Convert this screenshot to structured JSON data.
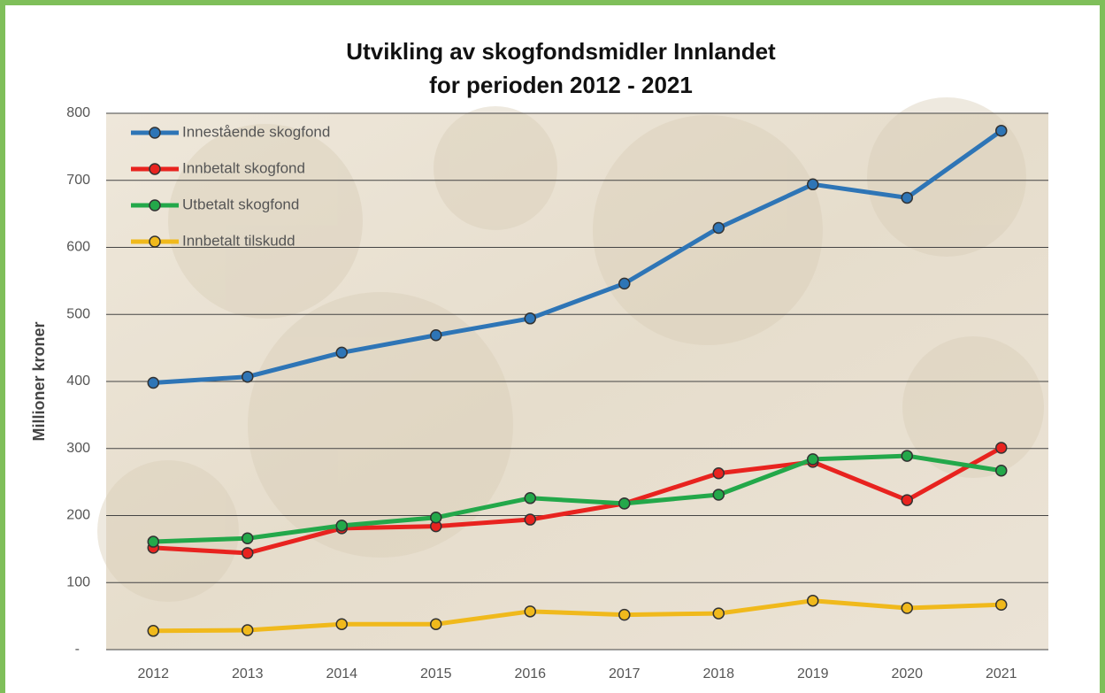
{
  "chart_data": {
    "type": "line",
    "title": "Utvikling av skogfondsmidler Innlandet",
    "subtitle": "for perioden 2012 - 2021",
    "y_label": "Millioner kroner",
    "categories": [
      "2012",
      "2013",
      "2014",
      "2015",
      "2016",
      "2017",
      "2018",
      "2019",
      "2020",
      "2021"
    ],
    "series": [
      {
        "name": "Innestående skogfond",
        "color": "#2e75b6",
        "values": [
          398,
          407,
          443,
          469,
          494,
          546,
          629,
          694,
          674,
          774
        ]
      },
      {
        "name": "Innbetalt skogfond",
        "color": "#e8231f",
        "values": [
          152,
          144,
          181,
          184,
          194,
          218,
          263,
          280,
          223,
          301
        ]
      },
      {
        "name": "Utbetalt skogfond",
        "color": "#23a84a",
        "values": [
          161,
          166,
          185,
          197,
          226,
          218,
          231,
          284,
          289,
          267
        ]
      },
      {
        "name": "Innbetalt tilskudd",
        "color": "#f0b91c",
        "values": [
          28,
          29,
          38,
          38,
          57,
          52,
          54,
          73,
          62,
          67
        ]
      }
    ],
    "ylim": [
      0,
      800
    ],
    "yticks": [
      {
        "value": 0,
        "label": "-"
      },
      100,
      200,
      300,
      400,
      500,
      600,
      700,
      800
    ],
    "grid": true,
    "legend": "upper left"
  }
}
